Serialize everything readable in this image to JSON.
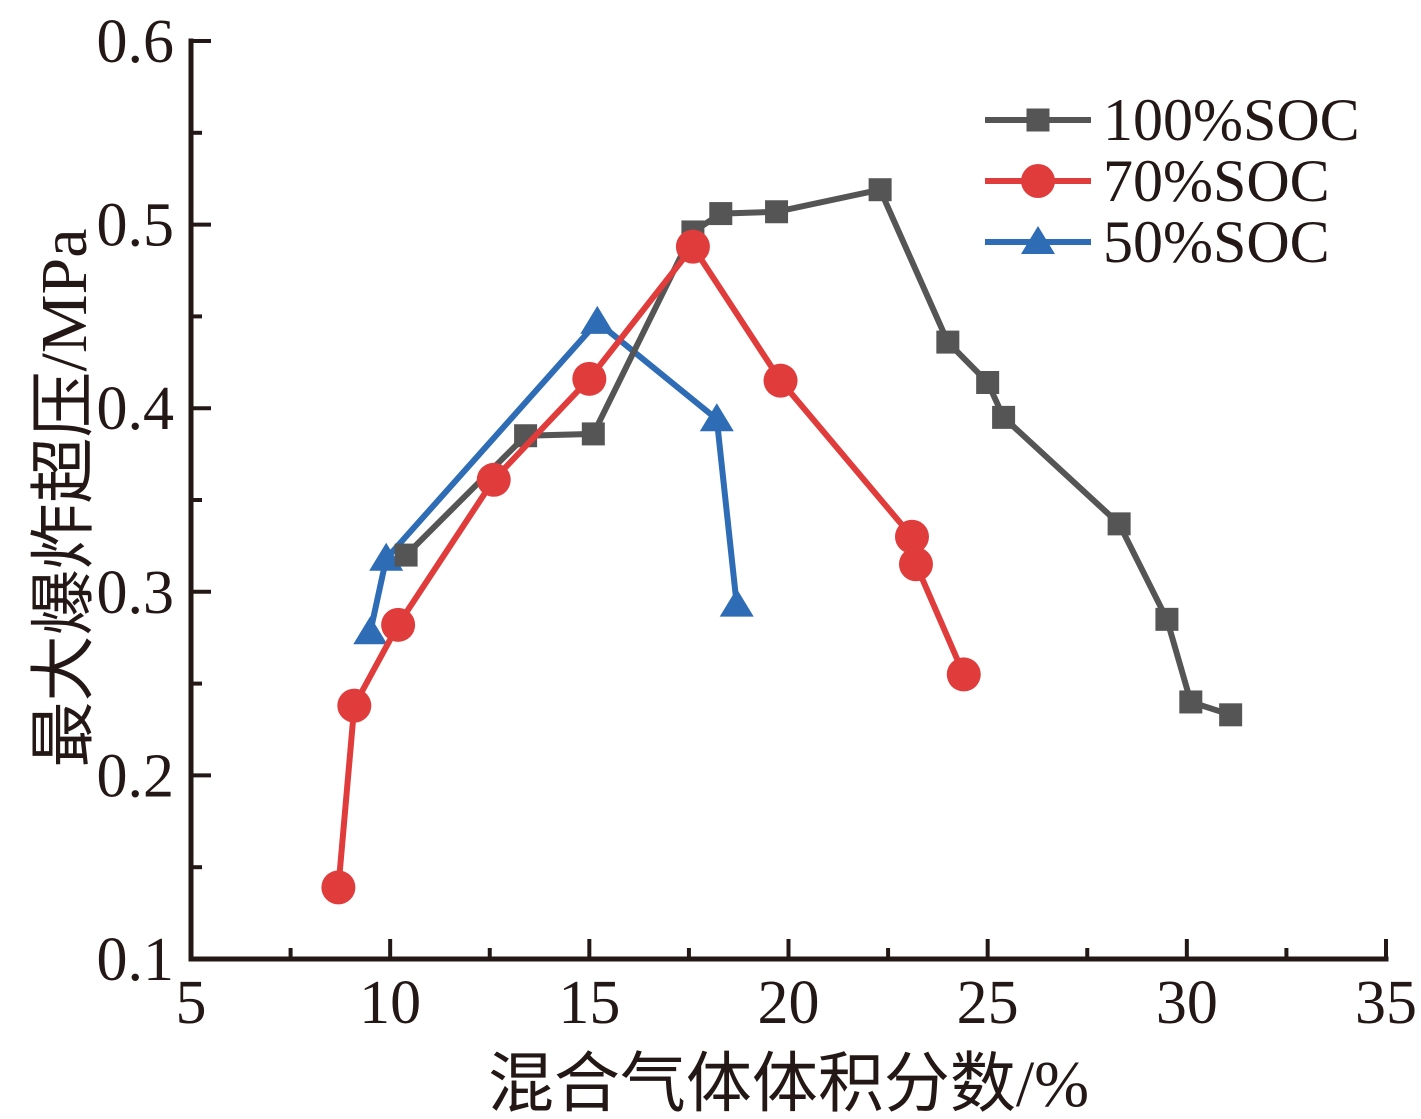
{
  "figure": {
    "background": "#ffffff",
    "text_color": "#231815"
  },
  "chart_data": {
    "type": "line",
    "title": "",
    "xlabel": "混合气体体积分数/%",
    "ylabel": "最大爆炸超压/MPa",
    "xlim": [
      5,
      35
    ],
    "ylim": [
      0.1,
      0.6
    ],
    "grid": false,
    "legend_position": "top-right",
    "axis_color": "#231815",
    "x_ticks": {
      "major": [
        5,
        10,
        15,
        20,
        25,
        30,
        35
      ],
      "labels": [
        "5",
        "10",
        "15",
        "20",
        "25",
        "30",
        "35"
      ],
      "minor": [
        7.5,
        12.5,
        17.5,
        22.5,
        27.5,
        32.5
      ]
    },
    "y_ticks": {
      "major": [
        0.1,
        0.2,
        0.3,
        0.4,
        0.5,
        0.6
      ],
      "labels": [
        "0.1",
        "0.2",
        "0.3",
        "0.4",
        "0.5",
        "0.6"
      ],
      "minor": [
        0.15,
        0.25,
        0.35,
        0.45,
        0.55
      ]
    },
    "draw_order": [
      2,
      0,
      1
    ],
    "series": [
      {
        "name": "100%SOC",
        "color": "#555555",
        "marker": "square",
        "points": [
          [
            10.4,
            0.32
          ],
          [
            13.4,
            0.385
          ],
          [
            15.1,
            0.386
          ],
          [
            17.6,
            0.496
          ],
          [
            18.3,
            0.506
          ],
          [
            19.7,
            0.507
          ],
          [
            22.3,
            0.519
          ],
          [
            24.0,
            0.436
          ],
          [
            25.0,
            0.414
          ],
          [
            25.4,
            0.395
          ],
          [
            28.3,
            0.337
          ],
          [
            29.5,
            0.285
          ],
          [
            30.1,
            0.24
          ],
          [
            31.1,
            0.233
          ]
        ]
      },
      {
        "name": "70%SOC",
        "color": "#e03c3c",
        "marker": "circle",
        "points": [
          [
            8.7,
            0.139
          ],
          [
            9.1,
            0.238
          ],
          [
            10.2,
            0.282
          ],
          [
            12.6,
            0.361
          ],
          [
            15.0,
            0.416
          ],
          [
            17.6,
            0.488
          ],
          [
            19.8,
            0.415
          ],
          [
            23.1,
            0.33
          ],
          [
            23.2,
            0.315
          ],
          [
            24.4,
            0.255
          ]
        ]
      },
      {
        "name": "50%SOC",
        "color": "#2e6cb5",
        "marker": "triangle",
        "points": [
          [
            9.5,
            0.278
          ],
          [
            9.9,
            0.318
          ],
          [
            15.2,
            0.447
          ],
          [
            18.2,
            0.394
          ],
          [
            18.7,
            0.293
          ]
        ]
      }
    ]
  }
}
